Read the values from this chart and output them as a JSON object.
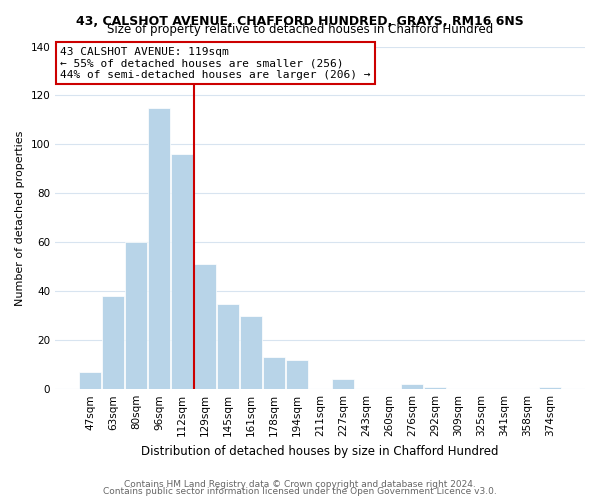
{
  "title1": "43, CALSHOT AVENUE, CHAFFORD HUNDRED, GRAYS, RM16 6NS",
  "title2": "Size of property relative to detached houses in Chafford Hundred",
  "xlabel": "Distribution of detached houses by size in Chafford Hundred",
  "ylabel": "Number of detached properties",
  "bar_labels": [
    "47sqm",
    "63sqm",
    "80sqm",
    "96sqm",
    "112sqm",
    "129sqm",
    "145sqm",
    "161sqm",
    "178sqm",
    "194sqm",
    "211sqm",
    "227sqm",
    "243sqm",
    "260sqm",
    "276sqm",
    "292sqm",
    "309sqm",
    "325sqm",
    "341sqm",
    "358sqm",
    "374sqm"
  ],
  "bar_values": [
    7,
    38,
    60,
    115,
    96,
    51,
    35,
    30,
    13,
    12,
    0,
    4,
    0,
    0,
    2,
    1,
    0,
    0,
    0,
    0,
    1
  ],
  "bar_color": "#b8d4e8",
  "bar_edge_color": "#ffffff",
  "vline_color": "#cc0000",
  "vline_x_idx": 4,
  "annotation_title": "43 CALSHOT AVENUE: 119sqm",
  "annotation_line1": "← 55% of detached houses are smaller (256)",
  "annotation_line2": "44% of semi-detached houses are larger (206) →",
  "annotation_box_color": "#ffffff",
  "annotation_box_edge": "#cc0000",
  "ylim": [
    0,
    140
  ],
  "yticks": [
    0,
    20,
    40,
    60,
    80,
    100,
    120,
    140
  ],
  "footer1": "Contains HM Land Registry data © Crown copyright and database right 2024.",
  "footer2": "Contains public sector information licensed under the Open Government Licence v3.0.",
  "background_color": "#ffffff",
  "plot_background": "#ffffff",
  "grid_color": "#d8e4f0",
  "title1_fontsize": 9,
  "title2_fontsize": 8.5,
  "ylabel_fontsize": 8,
  "xlabel_fontsize": 8.5,
  "tick_fontsize": 7.5,
  "footer_fontsize": 6.5,
  "ann_fontsize": 8
}
